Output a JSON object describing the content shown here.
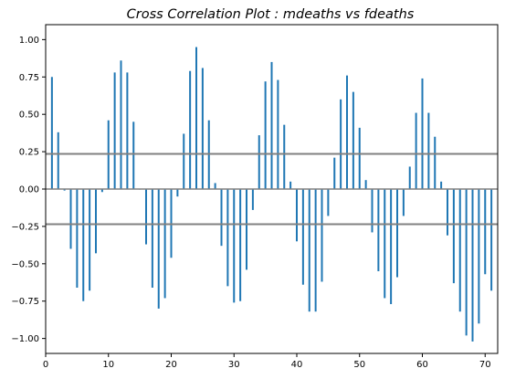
{
  "chart_data": {
    "type": "bar",
    "title": "Cross Correlation Plot : mdeaths vs fdeaths",
    "xlabel": "",
    "ylabel": "",
    "xlim": [
      0,
      72
    ],
    "ylim": [
      -1.1,
      1.1
    ],
    "x_ticks": [
      0,
      10,
      20,
      30,
      40,
      50,
      60,
      70
    ],
    "y_ticks": [
      -1.0,
      -0.75,
      -0.5,
      -0.25,
      0.0,
      0.25,
      0.5,
      0.75,
      1.0
    ],
    "y_tick_labels": [
      "−1.00",
      "−0.75",
      "−0.50",
      "−0.25",
      "0.00",
      "0.25",
      "0.50",
      "0.75",
      "1.00"
    ],
    "confidence_band": [
      0.235,
      -0.235
    ],
    "grid": false,
    "bar_color": "#1f77b4",
    "band_color": "#808080",
    "lags": [
      1,
      2,
      3,
      4,
      5,
      6,
      7,
      8,
      9,
      10,
      11,
      12,
      13,
      14,
      15,
      16,
      17,
      18,
      19,
      20,
      21,
      22,
      23,
      24,
      25,
      26,
      27,
      28,
      29,
      30,
      31,
      32,
      33,
      34,
      35,
      36,
      37,
      38,
      39,
      40,
      41,
      42,
      43,
      44,
      45,
      46,
      47,
      48,
      49,
      50,
      51,
      52,
      53,
      54,
      55,
      56,
      57,
      58,
      59,
      60,
      61,
      62,
      63,
      64,
      65,
      66,
      67,
      68,
      69,
      70,
      71
    ],
    "values": [
      0.75,
      0.38,
      -0.01,
      -0.4,
      -0.66,
      -0.75,
      -0.68,
      -0.43,
      -0.02,
      0.46,
      0.78,
      0.86,
      0.78,
      0.45,
      0.0,
      -0.37,
      -0.66,
      -0.8,
      -0.73,
      -0.46,
      -0.05,
      0.37,
      0.79,
      0.95,
      0.81,
      0.46,
      0.04,
      -0.38,
      -0.65,
      -0.76,
      -0.75,
      -0.54,
      -0.14,
      0.36,
      0.72,
      0.85,
      0.73,
      0.43,
      0.05,
      -0.35,
      -0.64,
      -0.82,
      -0.82,
      -0.62,
      -0.18,
      0.21,
      0.6,
      0.76,
      0.65,
      0.41,
      0.06,
      -0.29,
      -0.55,
      -0.73,
      -0.77,
      -0.59,
      -0.18,
      0.15,
      0.51,
      0.74,
      0.51,
      0.35,
      0.05,
      -0.31,
      -0.63,
      -0.82,
      -0.98,
      -1.02,
      -0.9,
      -0.57,
      -0.68
    ]
  }
}
